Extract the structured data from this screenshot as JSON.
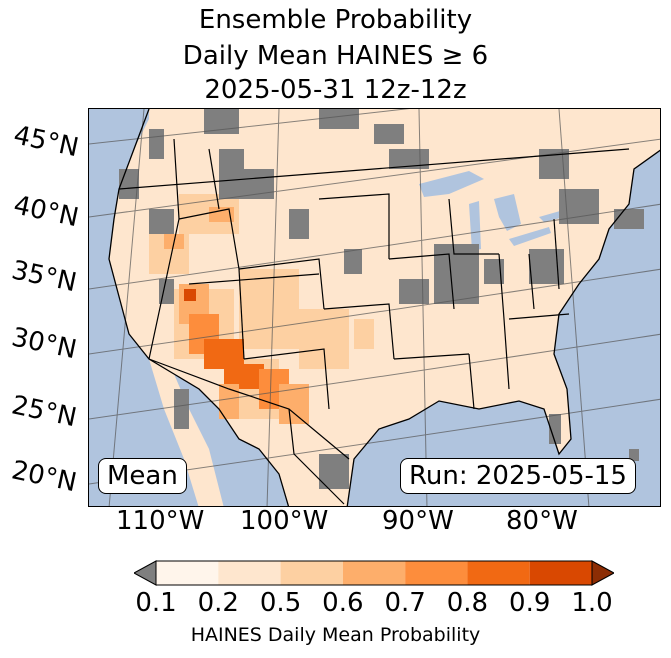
{
  "title": {
    "line1": "Ensemble Probability",
    "line2": "Daily Mean HAINES ≥ 6",
    "line3": "2025-05-31 12z-12z"
  },
  "map": {
    "lat_labels": [
      "45°N",
      "40°N",
      "35°N",
      "30°N",
      "25°N",
      "20°N"
    ],
    "lon_labels": [
      "110°W",
      "100°W",
      "90°W",
      "80°W"
    ],
    "stat_label": "Mean",
    "run_label": "Run: 2025-05-15",
    "colors": {
      "ocean": "#b0c4de",
      "land_base": "#fee6ce",
      "missing": "#7f7f7f"
    }
  },
  "colorbar": {
    "ticks": [
      "0.1",
      "0.2",
      "0.5",
      "0.6",
      "0.7",
      "0.8",
      "0.9",
      "1.0"
    ],
    "colors": [
      "#fff5eb",
      "#fee6ce",
      "#fdd0a2",
      "#fdae6b",
      "#fd8d3c",
      "#f16913",
      "#d94801"
    ],
    "under_color": "#7f7f7f",
    "over_color": "#8c2d04",
    "label": "HAINES Daily Mean Probability"
  }
}
